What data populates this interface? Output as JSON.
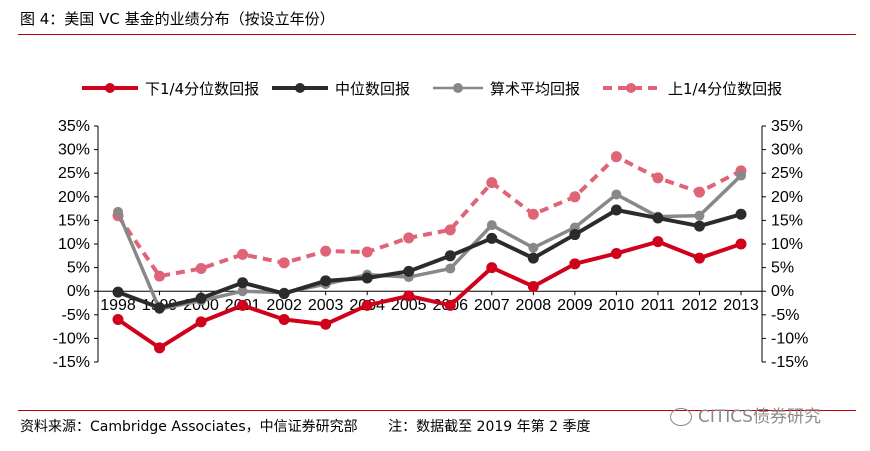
{
  "figure": {
    "title": "图 4：美国 VC 基金的业绩分布（按设立年份）",
    "source": "资料来源：Cambridge Associates，中信证券研究部",
    "note": "注：数据截至 2019 年第 2 季度",
    "watermark": "CITICS债券研究"
  },
  "chart_data": {
    "type": "line",
    "x": [
      "1998",
      "1999",
      "2000",
      "2001",
      "2002",
      "2003",
      "2004",
      "2005",
      "2006",
      "2007",
      "2008",
      "2009",
      "2010",
      "2011",
      "2012",
      "2013"
    ],
    "ylim": [
      -15,
      35
    ],
    "yticks": [
      "35%",
      "30%",
      "25%",
      "20%",
      "15%",
      "10%",
      "5%",
      "0%",
      "-5%",
      "-10%",
      "-15%"
    ],
    "ytick_values": [
      35,
      30,
      25,
      20,
      15,
      10,
      5,
      0,
      -5,
      -10,
      -15
    ],
    "dual_y_axis": true,
    "grid": false,
    "legend_position": "top",
    "series": [
      {
        "name": "下1/4分位数回报",
        "color": "#d0021b",
        "dash": false,
        "values": [
          -6.0,
          -12.0,
          -6.5,
          -3.0,
          -6.0,
          -7.0,
          -3.0,
          -1.0,
          -3.0,
          5.0,
          1.0,
          5.8,
          8.0,
          10.5,
          7.0,
          10.0
        ]
      },
      {
        "name": "中位数回报",
        "color": "#2b2b2b",
        "dash": false,
        "values": [
          -0.2,
          -3.5,
          -1.5,
          1.8,
          -0.5,
          2.2,
          2.8,
          4.2,
          7.5,
          11.2,
          7.0,
          12.0,
          17.2,
          15.5,
          13.8,
          16.3
        ]
      },
      {
        "name": "算术平均回报",
        "color": "#888888",
        "dash": false,
        "values": [
          16.8,
          -3.8,
          -2.0,
          0.0,
          -0.3,
          1.5,
          3.5,
          3.0,
          4.8,
          14.0,
          9.2,
          13.5,
          20.5,
          15.8,
          16.0,
          24.5
        ]
      },
      {
        "name": "上1/4分位数回报",
        "color": "#e06478",
        "dash": true,
        "values": [
          16.0,
          3.2,
          4.8,
          7.8,
          6.0,
          8.5,
          8.3,
          11.3,
          13.0,
          23.0,
          16.3,
          20.0,
          28.5,
          24.0,
          21.0,
          25.5
        ]
      }
    ]
  }
}
